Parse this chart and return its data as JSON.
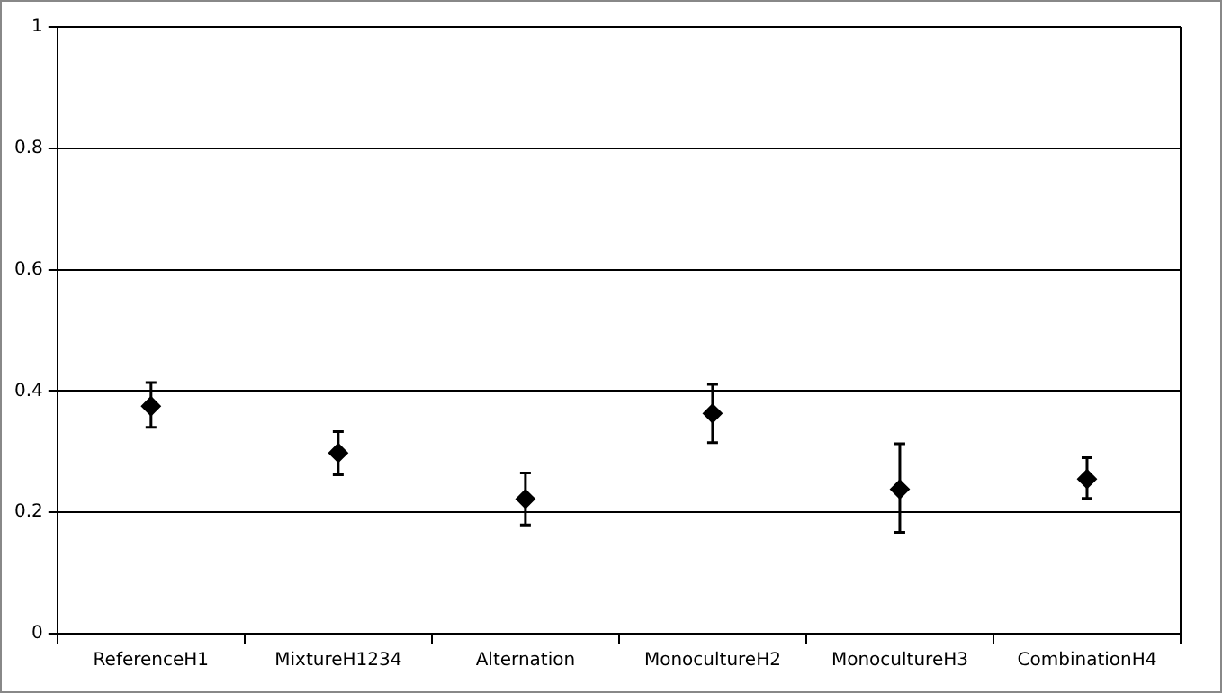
{
  "chart_data": {
    "type": "scatter",
    "categories": [
      "ReferenceH1",
      "MixtureH1234",
      "Alternation",
      "MonocultureH2",
      "MonocultureH3",
      "CombinationH4"
    ],
    "series": [
      {
        "color": "#000000",
        "values": [
          0.375,
          0.298,
          0.222,
          0.363,
          0.238,
          0.255
        ],
        "errors": [
          [
            0.34,
            0.414
          ],
          [
            0.262,
            0.333
          ],
          [
            0.179,
            0.265
          ],
          [
            0.315,
            0.411
          ],
          [
            0.167,
            0.313
          ],
          [
            0.223,
            0.29
          ]
        ]
      }
    ],
    "ylim": [
      0,
      1
    ],
    "yticks": [
      0,
      0.2,
      0.4,
      0.6,
      0.8,
      1
    ],
    "grid": "y",
    "legend": false,
    "marker": "diamond"
  }
}
